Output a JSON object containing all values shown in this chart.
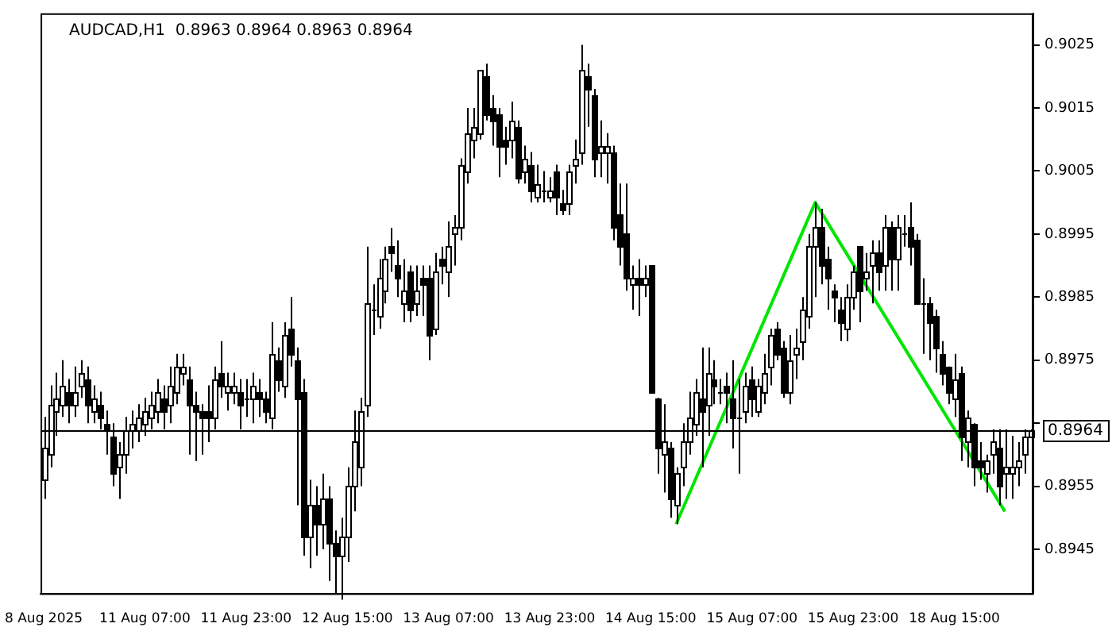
{
  "chart_data": {
    "type": "candlestick",
    "title": "AUDCAD,H1  0.8963 0.8964 0.8963 0.8964",
    "categories": [
      "8 Aug 2025",
      null,
      null,
      null,
      null,
      null,
      null,
      null,
      null,
      null,
      null,
      null,
      null,
      null,
      null,
      null,
      "11 Aug 07:00",
      null,
      null,
      null,
      null,
      null,
      null,
      null,
      null,
      null,
      null,
      null,
      null,
      null,
      null,
      null,
      "11 Aug 23:00",
      null,
      null,
      null,
      null,
      null,
      null,
      null,
      null,
      null,
      null,
      null,
      null,
      null,
      null,
      null,
      "12 Aug 15:00",
      null,
      null,
      null,
      null,
      null,
      null,
      null,
      null,
      null,
      null,
      null,
      null,
      null,
      null,
      null,
      "13 Aug 07:00",
      null,
      null,
      null,
      null,
      null,
      null,
      null,
      null,
      null,
      null,
      null,
      null,
      null,
      null,
      null,
      "13 Aug 23:00",
      null,
      null,
      null,
      null,
      null,
      null,
      null,
      null,
      null,
      null,
      null,
      null,
      null,
      null,
      null,
      "14 Aug 15:00",
      null,
      null,
      null,
      null,
      null,
      null,
      null,
      null,
      null,
      null,
      null,
      null,
      null,
      null,
      null,
      "15 Aug 07:00",
      null,
      null,
      null,
      null,
      null,
      null,
      null,
      null,
      null,
      null,
      null,
      null,
      null,
      null,
      null,
      "15 Aug 23:00",
      null,
      null,
      null,
      null,
      null,
      null,
      null,
      null,
      null,
      null,
      null,
      null,
      null,
      null,
      null,
      "18 Aug 15:00",
      null,
      null,
      null,
      null,
      null,
      null,
      null,
      null,
      null,
      null,
      null,
      null
    ],
    "ohlc": [
      [
        0.8956,
        0.8966,
        0.8953,
        0.8961
      ],
      [
        0.896,
        0.8971,
        0.8958,
        0.8968
      ],
      [
        0.8967,
        0.8973,
        0.8963,
        0.8969
      ],
      [
        0.8968,
        0.8975,
        0.8966,
        0.8971
      ],
      [
        0.897,
        0.8972,
        0.8965,
        0.8968
      ],
      [
        0.8968,
        0.8974,
        0.8966,
        0.897
      ],
      [
        0.8971,
        0.8975,
        0.8969,
        0.8973
      ],
      [
        0.8972,
        0.8974,
        0.8965,
        0.8968
      ],
      [
        0.8967,
        0.8971,
        0.8965,
        0.8969
      ],
      [
        0.8968,
        0.897,
        0.8964,
        0.8966
      ],
      [
        0.8965,
        0.8967,
        0.896,
        0.8964
      ],
      [
        0.8963,
        0.8965,
        0.8955,
        0.8957
      ],
      [
        0.8958,
        0.8962,
        0.8953,
        0.896
      ],
      [
        0.896,
        0.8966,
        0.8957,
        0.8964
      ],
      [
        0.8964,
        0.8967,
        0.8961,
        0.8965
      ],
      [
        0.8964,
        0.8968,
        0.8962,
        0.8966
      ],
      [
        0.8965,
        0.8969,
        0.8963,
        0.8967
      ],
      [
        0.8966,
        0.897,
        0.8964,
        0.8968
      ],
      [
        0.8967,
        0.8972,
        0.8965,
        0.897
      ],
      [
        0.8969,
        0.8971,
        0.8964,
        0.8967
      ],
      [
        0.8968,
        0.8974,
        0.8965,
        0.8971
      ],
      [
        0.897,
        0.8976,
        0.8968,
        0.8974
      ],
      [
        0.8973,
        0.8976,
        0.8971,
        0.8974
      ],
      [
        0.8972,
        0.8974,
        0.896,
        0.8968
      ],
      [
        0.8968,
        0.897,
        0.8959,
        0.8967
      ],
      [
        0.8967,
        0.8968,
        0.896,
        0.8966
      ],
      [
        0.8967,
        0.8971,
        0.8962,
        0.8966
      ],
      [
        0.8966,
        0.8974,
        0.8964,
        0.8972
      ],
      [
        0.8973,
        0.8978,
        0.8969,
        0.8971
      ],
      [
        0.897,
        0.8973,
        0.8967,
        0.8971
      ],
      [
        0.897,
        0.8973,
        0.8968,
        0.8971
      ],
      [
        0.897,
        0.8972,
        0.8964,
        0.8968
      ],
      [
        0.8969,
        0.8972,
        0.8966,
        0.8969
      ],
      [
        0.8969,
        0.8973,
        0.8965,
        0.8971
      ],
      [
        0.897,
        0.8972,
        0.8966,
        0.8969
      ],
      [
        0.8969,
        0.897,
        0.8965,
        0.8967
      ],
      [
        0.8966,
        0.8981,
        0.8964,
        0.8976
      ],
      [
        0.8975,
        0.8977,
        0.897,
        0.8972
      ],
      [
        0.8971,
        0.8981,
        0.8969,
        0.8979
      ],
      [
        0.898,
        0.8985,
        0.8974,
        0.8976
      ],
      [
        0.8975,
        0.8977,
        0.8952,
        0.8969
      ],
      [
        0.897,
        0.8972,
        0.8944,
        0.8947
      ],
      [
        0.8947,
        0.8956,
        0.8942,
        0.8952
      ],
      [
        0.8952,
        0.8955,
        0.8944,
        0.8949
      ],
      [
        0.8949,
        0.8957,
        0.8945,
        0.8953
      ],
      [
        0.8953,
        0.8955,
        0.894,
        0.8946
      ],
      [
        0.8946,
        0.8948,
        0.8938,
        0.8944
      ],
      [
        0.8944,
        0.895,
        0.8937,
        0.8947
      ],
      [
        0.8947,
        0.8958,
        0.8943,
        0.8955
      ],
      [
        0.8955,
        0.8967,
        0.8951,
        0.8962
      ],
      [
        0.8958,
        0.8969,
        0.8955,
        0.8967
      ],
      [
        0.8968,
        0.8993,
        0.8966,
        0.8984
      ],
      [
        0.8983,
        0.8987,
        0.8979,
        0.8983
      ],
      [
        0.8982,
        0.8991,
        0.898,
        0.8988
      ],
      [
        0.8986,
        0.8993,
        0.8984,
        0.8991
      ],
      [
        0.8993,
        0.8996,
        0.8989,
        0.8992
      ],
      [
        0.899,
        0.8994,
        0.8985,
        0.8988
      ],
      [
        0.8984,
        0.8991,
        0.8981,
        0.8986
      ],
      [
        0.8989,
        0.899,
        0.8981,
        0.8983
      ],
      [
        0.8984,
        0.899,
        0.8982,
        0.8986
      ],
      [
        0.8988,
        0.899,
        0.8982,
        0.8987
      ],
      [
        0.8988,
        0.899,
        0.8975,
        0.8979
      ],
      [
        0.898,
        0.8992,
        0.8979,
        0.8989
      ],
      [
        0.8991,
        0.8993,
        0.8987,
        0.899
      ],
      [
        0.8989,
        0.8997,
        0.8985,
        0.8993
      ],
      [
        0.8995,
        0.8998,
        0.899,
        0.8996
      ],
      [
        0.8996,
        0.9007,
        0.8994,
        0.9006
      ],
      [
        0.9005,
        0.9015,
        0.9003,
        0.9011
      ],
      [
        0.901,
        0.9015,
        0.9007,
        0.9012
      ],
      [
        0.9011,
        0.9021,
        0.901,
        0.9021
      ],
      [
        0.902,
        0.9022,
        0.9013,
        0.9014
      ],
      [
        0.9015,
        0.9017,
        0.9009,
        0.9013
      ],
      [
        0.9014,
        0.9015,
        0.9004,
        0.9009
      ],
      [
        0.901,
        0.9012,
        0.9006,
        0.9009
      ],
      [
        0.901,
        0.9016,
        0.9007,
        0.9013
      ],
      [
        0.9012,
        0.9013,
        0.9003,
        0.9004
      ],
      [
        0.9005,
        0.9009,
        0.9003,
        0.9007
      ],
      [
        0.9006,
        0.9008,
        0.9,
        0.9002
      ],
      [
        0.9001,
        0.9006,
        0.9,
        0.9003
      ],
      [
        0.9002,
        0.9005,
        0.9,
        0.9002
      ],
      [
        0.9001,
        0.9004,
        0.9,
        0.9002
      ],
      [
        0.9005,
        0.9006,
        0.8998,
        0.9001
      ],
      [
        0.9,
        0.9002,
        0.8998,
        0.8999
      ],
      [
        0.9,
        0.9006,
        0.8998,
        0.9005
      ],
      [
        0.9006,
        0.901,
        0.9003,
        0.9007
      ],
      [
        0.9008,
        0.9025,
        0.9006,
        0.9021
      ],
      [
        0.902,
        0.9022,
        0.9012,
        0.9018
      ],
      [
        0.9017,
        0.9018,
        0.9004,
        0.9007
      ],
      [
        0.9008,
        0.9013,
        0.9004,
        0.9009
      ],
      [
        0.9008,
        0.9011,
        0.9003,
        0.9009
      ],
      [
        0.9008,
        0.9009,
        0.8994,
        0.8996
      ],
      [
        0.8998,
        0.9003,
        0.899,
        0.8993
      ],
      [
        0.8995,
        0.9003,
        0.8986,
        0.8988
      ],
      [
        0.8987,
        0.899,
        0.8983,
        0.8988
      ],
      [
        0.8988,
        0.8991,
        0.8982,
        0.8987
      ],
      [
        0.8987,
        0.899,
        0.8985,
        0.8988
      ],
      [
        0.899,
        0.899,
        0.897,
        0.897
      ],
      [
        0.8969,
        0.8969,
        0.8957,
        0.8961
      ],
      [
        0.896,
        0.8968,
        0.8954,
        0.8962
      ],
      [
        0.8961,
        0.8962,
        0.895,
        0.8953
      ],
      [
        0.8952,
        0.8958,
        0.8949,
        0.8957
      ],
      [
        0.8958,
        0.8965,
        0.8955,
        0.8962
      ],
      [
        0.8962,
        0.897,
        0.896,
        0.8966
      ],
      [
        0.8965,
        0.8972,
        0.8963,
        0.897
      ],
      [
        0.8969,
        0.8977,
        0.8958,
        0.8967
      ],
      [
        0.8968,
        0.8977,
        0.8963,
        0.8973
      ],
      [
        0.8972,
        0.8975,
        0.8968,
        0.8971
      ],
      [
        0.897,
        0.8972,
        0.8968,
        0.897
      ],
      [
        0.8971,
        0.8973,
        0.8965,
        0.897
      ],
      [
        0.8969,
        0.8975,
        0.8961,
        0.8966
      ],
      [
        0.8966,
        0.8972,
        0.8957,
        0.8966
      ],
      [
        0.8967,
        0.8973,
        0.8965,
        0.8971
      ],
      [
        0.8972,
        0.8974,
        0.8966,
        0.8969
      ],
      [
        0.8967,
        0.8972,
        0.8966,
        0.8971
      ],
      [
        0.897,
        0.8976,
        0.8968,
        0.8973
      ],
      [
        0.8974,
        0.898,
        0.8971,
        0.8979
      ],
      [
        0.898,
        0.8981,
        0.8975,
        0.8976
      ],
      [
        0.8977,
        0.8978,
        0.8969,
        0.897
      ],
      [
        0.897,
        0.8979,
        0.8968,
        0.8975
      ],
      [
        0.8976,
        0.898,
        0.8972,
        0.8977
      ],
      [
        0.8978,
        0.8985,
        0.8975,
        0.8983
      ],
      [
        0.8982,
        0.8995,
        0.898,
        0.8993
      ],
      [
        0.8993,
        0.9,
        0.8985,
        0.8996
      ],
      [
        0.8996,
        0.8999,
        0.8987,
        0.899
      ],
      [
        0.8991,
        0.8993,
        0.8983,
        0.8988
      ],
      [
        0.8986,
        0.8987,
        0.8981,
        0.8985
      ],
      [
        0.8983,
        0.8985,
        0.8978,
        0.8981
      ],
      [
        0.898,
        0.8987,
        0.8978,
        0.8985
      ],
      [
        0.8985,
        0.899,
        0.8983,
        0.8989
      ],
      [
        0.8993,
        0.8993,
        0.8981,
        0.8986
      ],
      [
        0.8988,
        0.8992,
        0.8986,
        0.8989
      ],
      [
        0.899,
        0.8994,
        0.8984,
        0.8992
      ],
      [
        0.8992,
        0.8994,
        0.8986,
        0.8989
      ],
      [
        0.899,
        0.8998,
        0.8986,
        0.8996
      ],
      [
        0.8996,
        0.8997,
        0.8986,
        0.8991
      ],
      [
        0.8991,
        0.8998,
        0.8986,
        0.8996
      ],
      [
        0.8995,
        0.8998,
        0.8993,
        0.8995
      ],
      [
        0.8996,
        0.9,
        0.899,
        0.8993
      ],
      [
        0.8994,
        0.8995,
        0.8984,
        0.8984
      ],
      [
        0.8984,
        0.8988,
        0.8976,
        0.8984
      ],
      [
        0.8984,
        0.8985,
        0.8975,
        0.8981
      ],
      [
        0.8982,
        0.8983,
        0.8973,
        0.8977
      ],
      [
        0.8976,
        0.8978,
        0.8971,
        0.8973
      ],
      [
        0.8974,
        0.8974,
        0.8968,
        0.897
      ],
      [
        0.8969,
        0.8976,
        0.8966,
        0.8972
      ],
      [
        0.8973,
        0.8974,
        0.8959,
        0.8963
      ],
      [
        0.8962,
        0.8967,
        0.8958,
        0.8966
      ],
      [
        0.8965,
        0.8965,
        0.8955,
        0.8958
      ],
      [
        0.8959,
        0.8962,
        0.8956,
        0.8958
      ],
      [
        0.8957,
        0.896,
        0.8954,
        0.8959
      ],
      [
        0.896,
        0.8964,
        0.8957,
        0.8962
      ],
      [
        0.8961,
        0.8964,
        0.8952,
        0.8955
      ],
      [
        0.8957,
        0.8964,
        0.8953,
        0.8958
      ],
      [
        0.8957,
        0.8963,
        0.8953,
        0.8958
      ],
      [
        0.8958,
        0.8962,
        0.8955,
        0.8959
      ],
      [
        0.896,
        0.8964,
        0.8957,
        0.8963
      ],
      [
        0.8963,
        0.8964,
        0.8963,
        0.8964
      ]
    ],
    "series": [
      {
        "type": "line",
        "color": "#00e600",
        "values": [
          null,
          null,
          null,
          null,
          null,
          null,
          null,
          null,
          null,
          null,
          null,
          null,
          null,
          null,
          null,
          null,
          null,
          null,
          null,
          null,
          null,
          null,
          null,
          null,
          null,
          null,
          null,
          null,
          null,
          null,
          null,
          null,
          null,
          null,
          null,
          null,
          null,
          null,
          null,
          null,
          null,
          null,
          null,
          null,
          null,
          null,
          null,
          null,
          null,
          null,
          null,
          null,
          null,
          null,
          null,
          null,
          null,
          null,
          null,
          null,
          null,
          null,
          null,
          null,
          null,
          null,
          null,
          null,
          null,
          null,
          null,
          null,
          null,
          null,
          null,
          null,
          null,
          null,
          null,
          null,
          null,
          null,
          null,
          null,
          null,
          null,
          null,
          null,
          null,
          null,
          null,
          null,
          null,
          null,
          null,
          null,
          null,
          null,
          null,
          null,
          0.8949,
          null,
          null,
          null,
          null,
          null,
          null,
          null,
          null,
          null,
          null,
          null,
          null,
          null,
          null,
          null,
          null,
          null,
          null,
          null,
          null,
          null,
          0.9,
          null,
          null,
          null,
          null,
          null,
          null,
          null,
          null,
          null,
          null,
          null,
          null,
          null,
          null,
          null,
          null,
          null,
          null,
          null,
          null,
          null,
          null,
          null,
          null,
          null,
          null,
          null,
          null,
          null,
          0.8951,
          null,
          null,
          null,
          null
        ]
      }
    ],
    "ylim": [
      0.8938,
      0.903
    ],
    "yticks": [
      0.8945,
      0.8955,
      {
        "value": 0.8965,
        "label": null
      },
      0.8975,
      0.8985,
      0.8995,
      0.9005,
      0.9015,
      0.9025
    ],
    "ref_lines": [
      {
        "axis": "y",
        "value": 0.8964,
        "label": "0.8964",
        "color": "#000000"
      }
    ],
    "grid": false,
    "legend": false,
    "marker": "none"
  }
}
